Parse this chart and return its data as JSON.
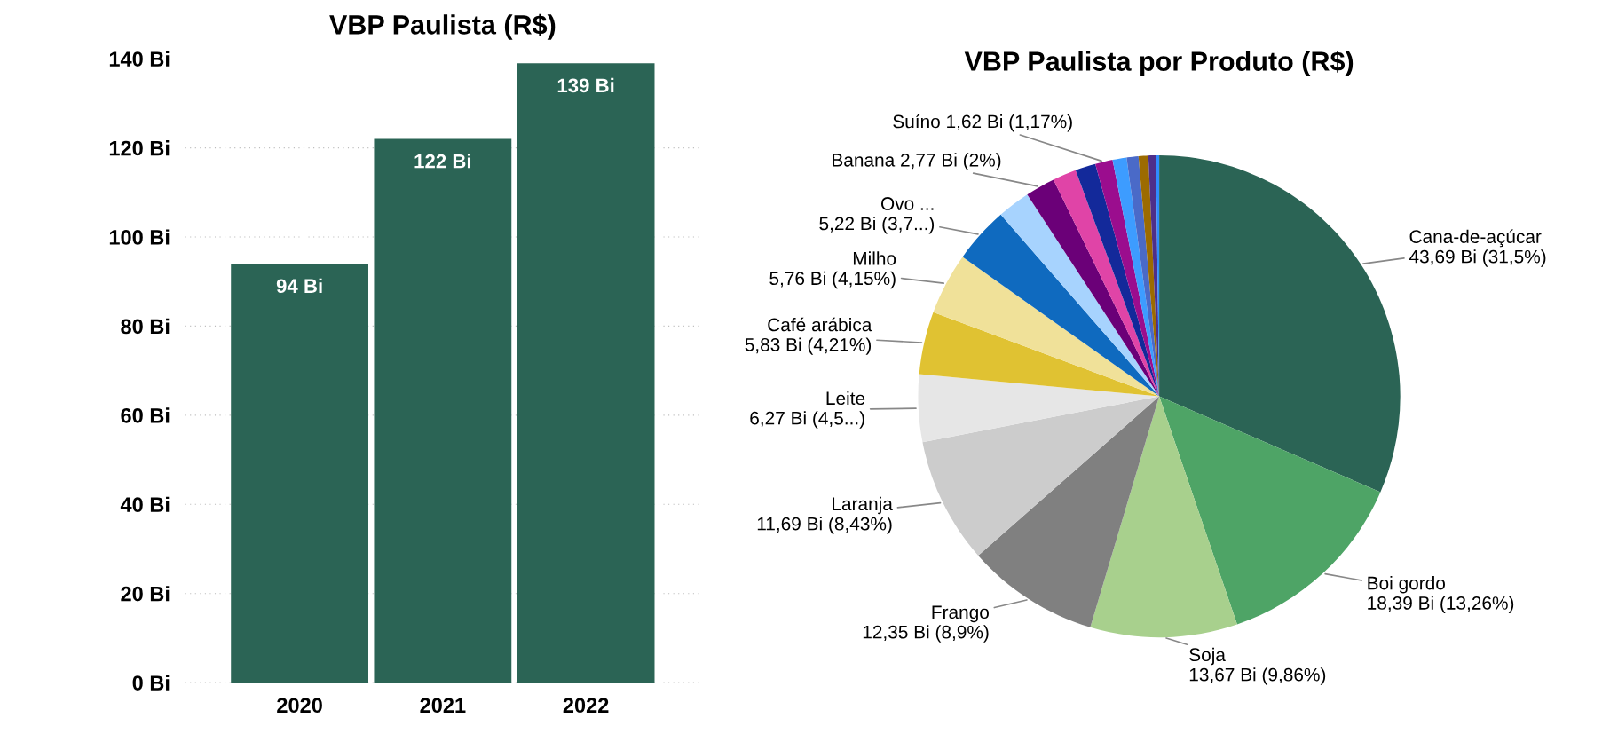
{
  "chart_data": [
    {
      "type": "bar",
      "title": "VBP Paulista (R$)",
      "categories": [
        "2020",
        "2021",
        "2022"
      ],
      "values": [
        94,
        122,
        139
      ],
      "color": "#2b6455",
      "value_labels": [
        "94 Bi",
        "122 Bi",
        "139 Bi"
      ],
      "ylim": [
        0,
        140
      ],
      "yticks": [
        {
          "value": 0,
          "label": "0 Bi"
        },
        {
          "value": 20,
          "label": "20 Bi"
        },
        {
          "value": 40,
          "label": "40 Bi"
        },
        {
          "value": 60,
          "label": "60 Bi"
        },
        {
          "value": 80,
          "label": "80 Bi"
        },
        {
          "value": 100,
          "label": "100 Bi"
        },
        {
          "value": 120,
          "label": "120 Bi"
        },
        {
          "value": 140,
          "label": "140 Bi"
        }
      ],
      "grid": "y",
      "legend": false
    },
    {
      "type": "pie",
      "title": "VBP Paulista por Produto (R$)",
      "categories": [
        "Cana-de-açúcar",
        "Boi gordo",
        "Soja",
        "Frango",
        "Laranja",
        "Leite",
        "Café arábica",
        "Milho",
        "Ovo ...",
        null,
        "Banana",
        null,
        null,
        "Suíno",
        null,
        null,
        null,
        null,
        null
      ],
      "values": [
        43.69,
        18.39,
        13.67,
        12.35,
        11.69,
        6.27,
        5.83,
        5.76,
        5.22,
        3.04,
        2.77,
        2.2,
        1.9,
        1.62,
        1.3,
        1.1,
        0.9,
        0.7,
        0.3
      ],
      "colors": [
        "#2b6455",
        "#4ea466",
        "#a8d08d",
        "#808080",
        "#cccccc",
        "#e6e6e6",
        "#e0c232",
        "#f0e199",
        "#0f6abf",
        "#a7d3fe",
        "#6b0078",
        "#e044a7",
        "#13299a",
        "#9b0d8e",
        "#3d9cff",
        "#4a6ac8",
        "#9c6b00",
        "#4e2f8a",
        "#2f8cff"
      ],
      "value_labels": [
        "43,69 Bi (31,5%)",
        "18,39 Bi (13,26%)",
        "13,67 Bi (9,86%)",
        "12,35 Bi (8,9%)",
        "11,69 Bi (8,43%)",
        "6,27 Bi (4,5...)",
        "5,83 Bi (4,21%)",
        "5,76 Bi (4,15%)",
        "5,22 Bi (3,7...)",
        null,
        "2,77 Bi (2%)",
        null,
        null,
        "1,62 Bi (1,17%)",
        null,
        null,
        null,
        null,
        null
      ],
      "legend": false
    }
  ]
}
